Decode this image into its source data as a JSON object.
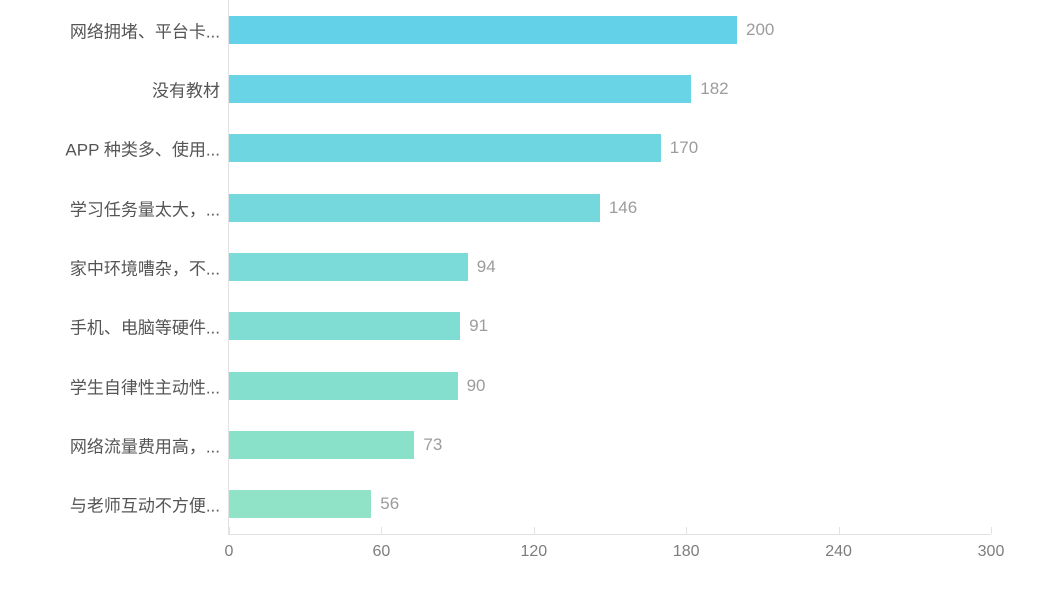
{
  "chart_data": {
    "type": "bar",
    "orientation": "horizontal",
    "title": "",
    "xlabel": "",
    "ylabel": "",
    "categories": [
      "网络拥堵、平台卡...",
      "没有教材",
      "APP 种类多、使用...",
      "学习任务量太大，...",
      "家中环境嘈杂，不...",
      "手机、电脑等硬件...",
      "学生自律性主动性...",
      "网络流量费用高，...",
      "与老师互动不方便..."
    ],
    "values": [
      200,
      182,
      170,
      146,
      94,
      91,
      90,
      73,
      56
    ],
    "xlim": [
      0,
      300
    ],
    "x_ticks": [
      0,
      60,
      120,
      180,
      240,
      300
    ],
    "grid": false,
    "legend_position": "none",
    "value_labels_shown": true,
    "colors": {
      "bar_colors": [
        "#63D2E9",
        "#69D4E5",
        "#6ED6E0",
        "#74D8DC",
        "#7ADBD8",
        "#7FDDD3",
        "#85DFCF",
        "#8AE1CA",
        "#90E3C6"
      ],
      "bar_gradient_top": "#63D2E9",
      "bar_gradient_bottom": "#90E3C6",
      "value_label": "#9C9C9C",
      "category_label": "#555555",
      "tick_label": "#7D7D7D",
      "axis_line": "#E2E2E2",
      "background": "#FFFFFF"
    }
  }
}
